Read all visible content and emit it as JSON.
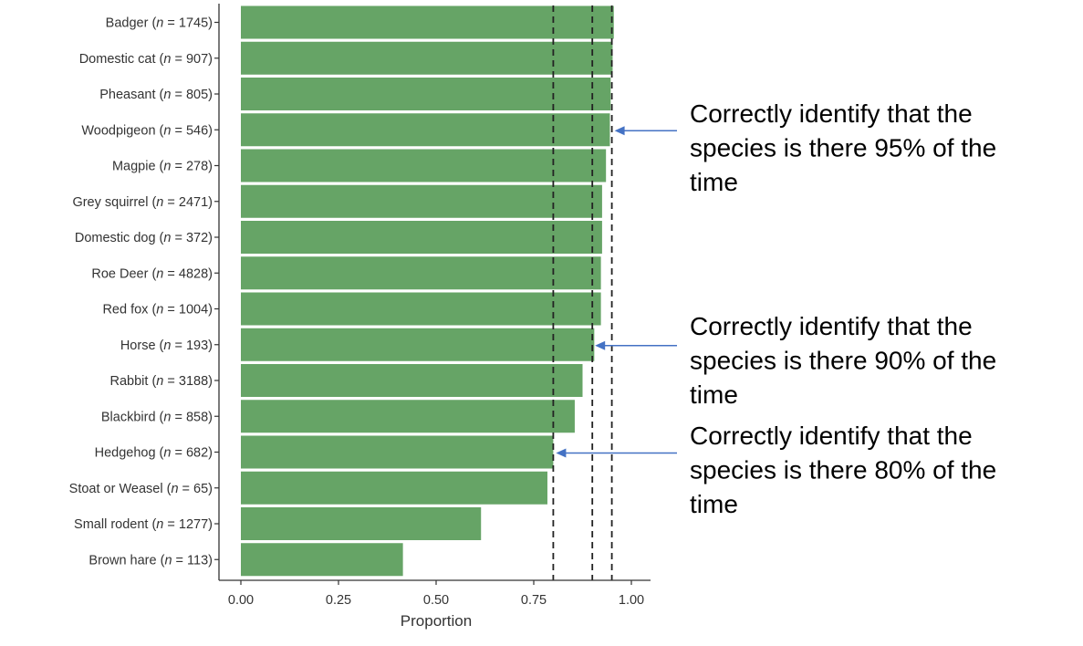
{
  "chart_data": {
    "type": "bar",
    "orientation": "horizontal",
    "categories": [
      "Badger",
      "Domestic cat",
      "Pheasant",
      "Woodpigeon",
      "Magpie",
      "Grey squirrel",
      "Domestic dog",
      "Roe Deer",
      "Red fox",
      "Horse",
      "Rabbit",
      "Blackbird",
      "Hedgehog",
      "Stoat or Weasel",
      "Small rodent",
      "Brown hare"
    ],
    "n_values": [
      "1745",
      "907",
      "805",
      "546",
      "278",
      "2471",
      "372",
      "4828",
      "1004",
      "193",
      "3188",
      "858",
      "682",
      "65",
      "1277",
      "113"
    ],
    "values": [
      0.955,
      0.952,
      0.947,
      0.945,
      0.935,
      0.925,
      0.925,
      0.922,
      0.922,
      0.905,
      0.875,
      0.855,
      0.8,
      0.785,
      0.615,
      0.415
    ],
    "xlabel": "Proportion",
    "xticks": [
      "0.00",
      "0.25",
      "0.50",
      "0.75",
      "1.00"
    ],
    "xlim": [
      -0.05,
      1.05
    ],
    "reference_lines": [
      0.8,
      0.9,
      0.95
    ],
    "bar_color": "#66a466",
    "annotations": [
      {
        "lines": [
          "Correctly identify that the",
          "species is there 95% of the",
          "time"
        ],
        "target": 0.95,
        "category_index": 3
      },
      {
        "lines": [
          "Correctly identify that the",
          "species is there 90% of the",
          "time"
        ],
        "target": 0.9,
        "category_index": 9
      },
      {
        "lines": [
          "Correctly identify that the",
          "species is there 80% of the",
          "time"
        ],
        "target": 0.8,
        "category_index": 12
      }
    ],
    "arrow_color": "#4472c4"
  }
}
